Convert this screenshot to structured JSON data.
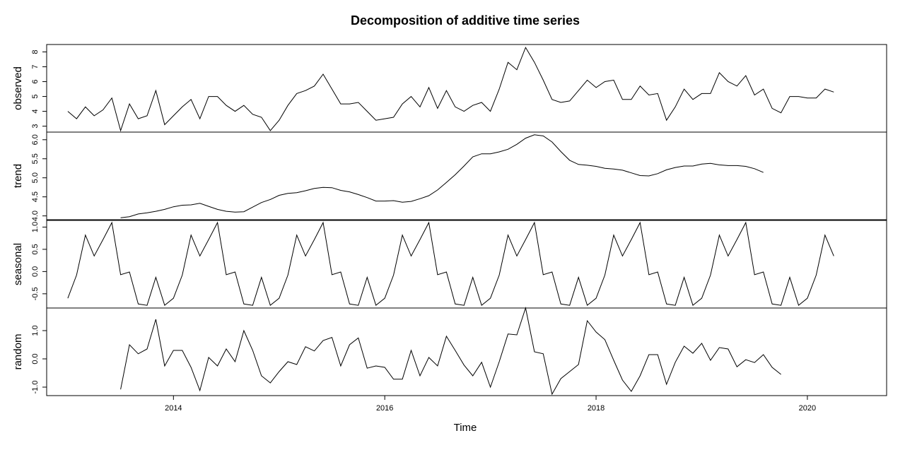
{
  "chart_data": {
    "type": "line",
    "title": "Decomposition of additive time series",
    "xlabel": "Time",
    "start": 2013.0,
    "frequency": 12,
    "xlim": [
      2012.8,
      2020.75
    ],
    "x_ticks": [
      2014,
      2016,
      2018,
      2020
    ],
    "x_tick_labels": [
      "2014",
      "2016",
      "2018",
      "2020"
    ],
    "panels": [
      {
        "name": "observed",
        "ylabel": "observed",
        "ylim": [
          2.6,
          8.5
        ],
        "ticks": [
          3,
          4,
          5,
          6,
          7,
          8
        ],
        "tick_labels": [
          "3",
          "4",
          "5",
          "6",
          "7",
          "8"
        ],
        "values": [
          4.0,
          3.5,
          4.3,
          3.7,
          4.1,
          4.9,
          2.7,
          4.5,
          3.5,
          3.7,
          5.4,
          3.1,
          3.7,
          4.3,
          4.8,
          3.5,
          5.0,
          5.0,
          4.4,
          4.0,
          4.4,
          3.8,
          3.6,
          2.7,
          3.4,
          4.4,
          5.2,
          5.4,
          5.7,
          6.5,
          5.5,
          4.5,
          4.5,
          4.6,
          4.0,
          3.4,
          3.5,
          3.6,
          4.5,
          5.0,
          4.3,
          5.6,
          4.2,
          5.4,
          4.3,
          4.0,
          4.4,
          4.6,
          4.0,
          5.5,
          7.3,
          6.8,
          8.3,
          7.3,
          6.1,
          4.8,
          4.6,
          4.7,
          5.4,
          6.1,
          5.6,
          6.0,
          6.1,
          4.8,
          4.8,
          5.7,
          5.1,
          5.2,
          3.4,
          4.3,
          5.5,
          4.8,
          5.2,
          5.2,
          6.6,
          6.0,
          5.7,
          6.4,
          5.1,
          5.5,
          4.2,
          3.9,
          5.0,
          5.0,
          4.9,
          4.9,
          5.5,
          5.3
        ]
      },
      {
        "name": "trend",
        "ylabel": "trend",
        "ylim": [
          3.9,
          6.2
        ],
        "ticks": [
          4.0,
          4.5,
          5.0,
          5.5,
          6.0
        ],
        "tick_labels": [
          "4.0",
          "4.5",
          "5.0",
          "5.5",
          "6.0"
        ],
        "values": [
          null,
          null,
          null,
          null,
          null,
          null,
          3.95,
          3.98,
          4.05,
          4.08,
          4.12,
          4.17,
          4.24,
          4.28,
          4.29,
          4.33,
          4.25,
          4.17,
          4.12,
          4.1,
          4.11,
          4.23,
          4.35,
          4.43,
          4.54,
          4.59,
          4.61,
          4.66,
          4.72,
          4.75,
          4.74,
          4.67,
          4.63,
          4.56,
          4.48,
          4.39,
          4.39,
          4.4,
          4.36,
          4.38,
          4.45,
          4.53,
          4.68,
          4.88,
          5.08,
          5.31,
          5.55,
          5.63,
          5.63,
          5.68,
          5.75,
          5.88,
          6.04,
          6.13,
          6.1,
          5.94,
          5.69,
          5.46,
          5.35,
          5.33,
          5.3,
          5.25,
          5.23,
          5.2,
          5.13,
          5.06,
          5.05,
          5.11,
          5.21,
          5.27,
          5.31,
          5.31,
          5.36,
          5.38,
          5.34,
          5.32,
          5.32,
          5.3,
          5.24,
          5.14,
          null,
          null,
          null,
          null,
          null,
          null,
          null,
          null
        ]
      },
      {
        "name": "seasonal",
        "ylabel": "seasonal",
        "ylim": [
          -0.82,
          1.15
        ],
        "ticks": [
          -0.5,
          0.0,
          0.5,
          1.0
        ],
        "tick_labels": [
          "-0.5",
          "0.0",
          "0.5",
          "1.0"
        ],
        "values": [
          -0.6,
          -0.08,
          0.82,
          0.35,
          0.72,
          1.1,
          -0.07,
          -0.01,
          -0.73,
          -0.76,
          -0.13,
          -0.76,
          -0.6,
          -0.08,
          0.82,
          0.35,
          0.72,
          1.1,
          -0.07,
          -0.01,
          -0.73,
          -0.76,
          -0.13,
          -0.76,
          -0.6,
          -0.08,
          0.82,
          0.35,
          0.72,
          1.1,
          -0.07,
          -0.01,
          -0.73,
          -0.76,
          -0.13,
          -0.76,
          -0.6,
          -0.08,
          0.82,
          0.35,
          0.72,
          1.1,
          -0.07,
          -0.01,
          -0.73,
          -0.76,
          -0.13,
          -0.76,
          -0.6,
          -0.08,
          0.82,
          0.35,
          0.72,
          1.1,
          -0.07,
          -0.01,
          -0.73,
          -0.76,
          -0.13,
          -0.76,
          -0.6,
          -0.08,
          0.82,
          0.35,
          0.72,
          1.1,
          -0.07,
          -0.01,
          -0.73,
          -0.76,
          -0.13,
          -0.76,
          -0.6,
          -0.08,
          0.82,
          0.35,
          0.72,
          1.1,
          -0.07,
          -0.01,
          -0.73,
          -0.76,
          -0.13,
          -0.76,
          -0.6,
          -0.08,
          0.82,
          0.35
        ]
      },
      {
        "name": "random",
        "ylabel": "random",
        "ylim": [
          -1.3,
          1.8
        ],
        "ticks": [
          -1.0,
          0.0,
          1.0
        ],
        "tick_labels": [
          "-1.0",
          "0.0",
          "1.0"
        ],
        "values": [
          null,
          null,
          null,
          null,
          null,
          null,
          -1.08,
          0.5,
          0.18,
          0.35,
          1.4,
          -0.25,
          0.3,
          0.3,
          -0.3,
          -1.12,
          0.05,
          -0.25,
          0.35,
          -0.1,
          1.0,
          0.3,
          -0.6,
          -0.85,
          -0.45,
          -0.1,
          -0.2,
          0.43,
          0.28,
          0.65,
          0.76,
          -0.25,
          0.5,
          0.74,
          -0.33,
          -0.25,
          -0.3,
          -0.72,
          -0.72,
          0.3,
          -0.6,
          0.05,
          -0.25,
          0.8,
          0.3,
          -0.22,
          -0.6,
          -0.12,
          -1.0,
          -0.1,
          0.88,
          0.85,
          1.8,
          0.25,
          0.18,
          -1.25,
          -0.7,
          -0.45,
          -0.2,
          1.35,
          0.95,
          0.68,
          -0.05,
          -0.75,
          -1.15,
          -0.6,
          0.15,
          0.15,
          -0.9,
          -0.12,
          0.45,
          0.2,
          0.55,
          -0.05,
          0.4,
          0.35,
          -0.28,
          -0.03,
          -0.13,
          0.15,
          -0.3,
          -0.55,
          null,
          null,
          null,
          null,
          null,
          null
        ]
      }
    ]
  }
}
